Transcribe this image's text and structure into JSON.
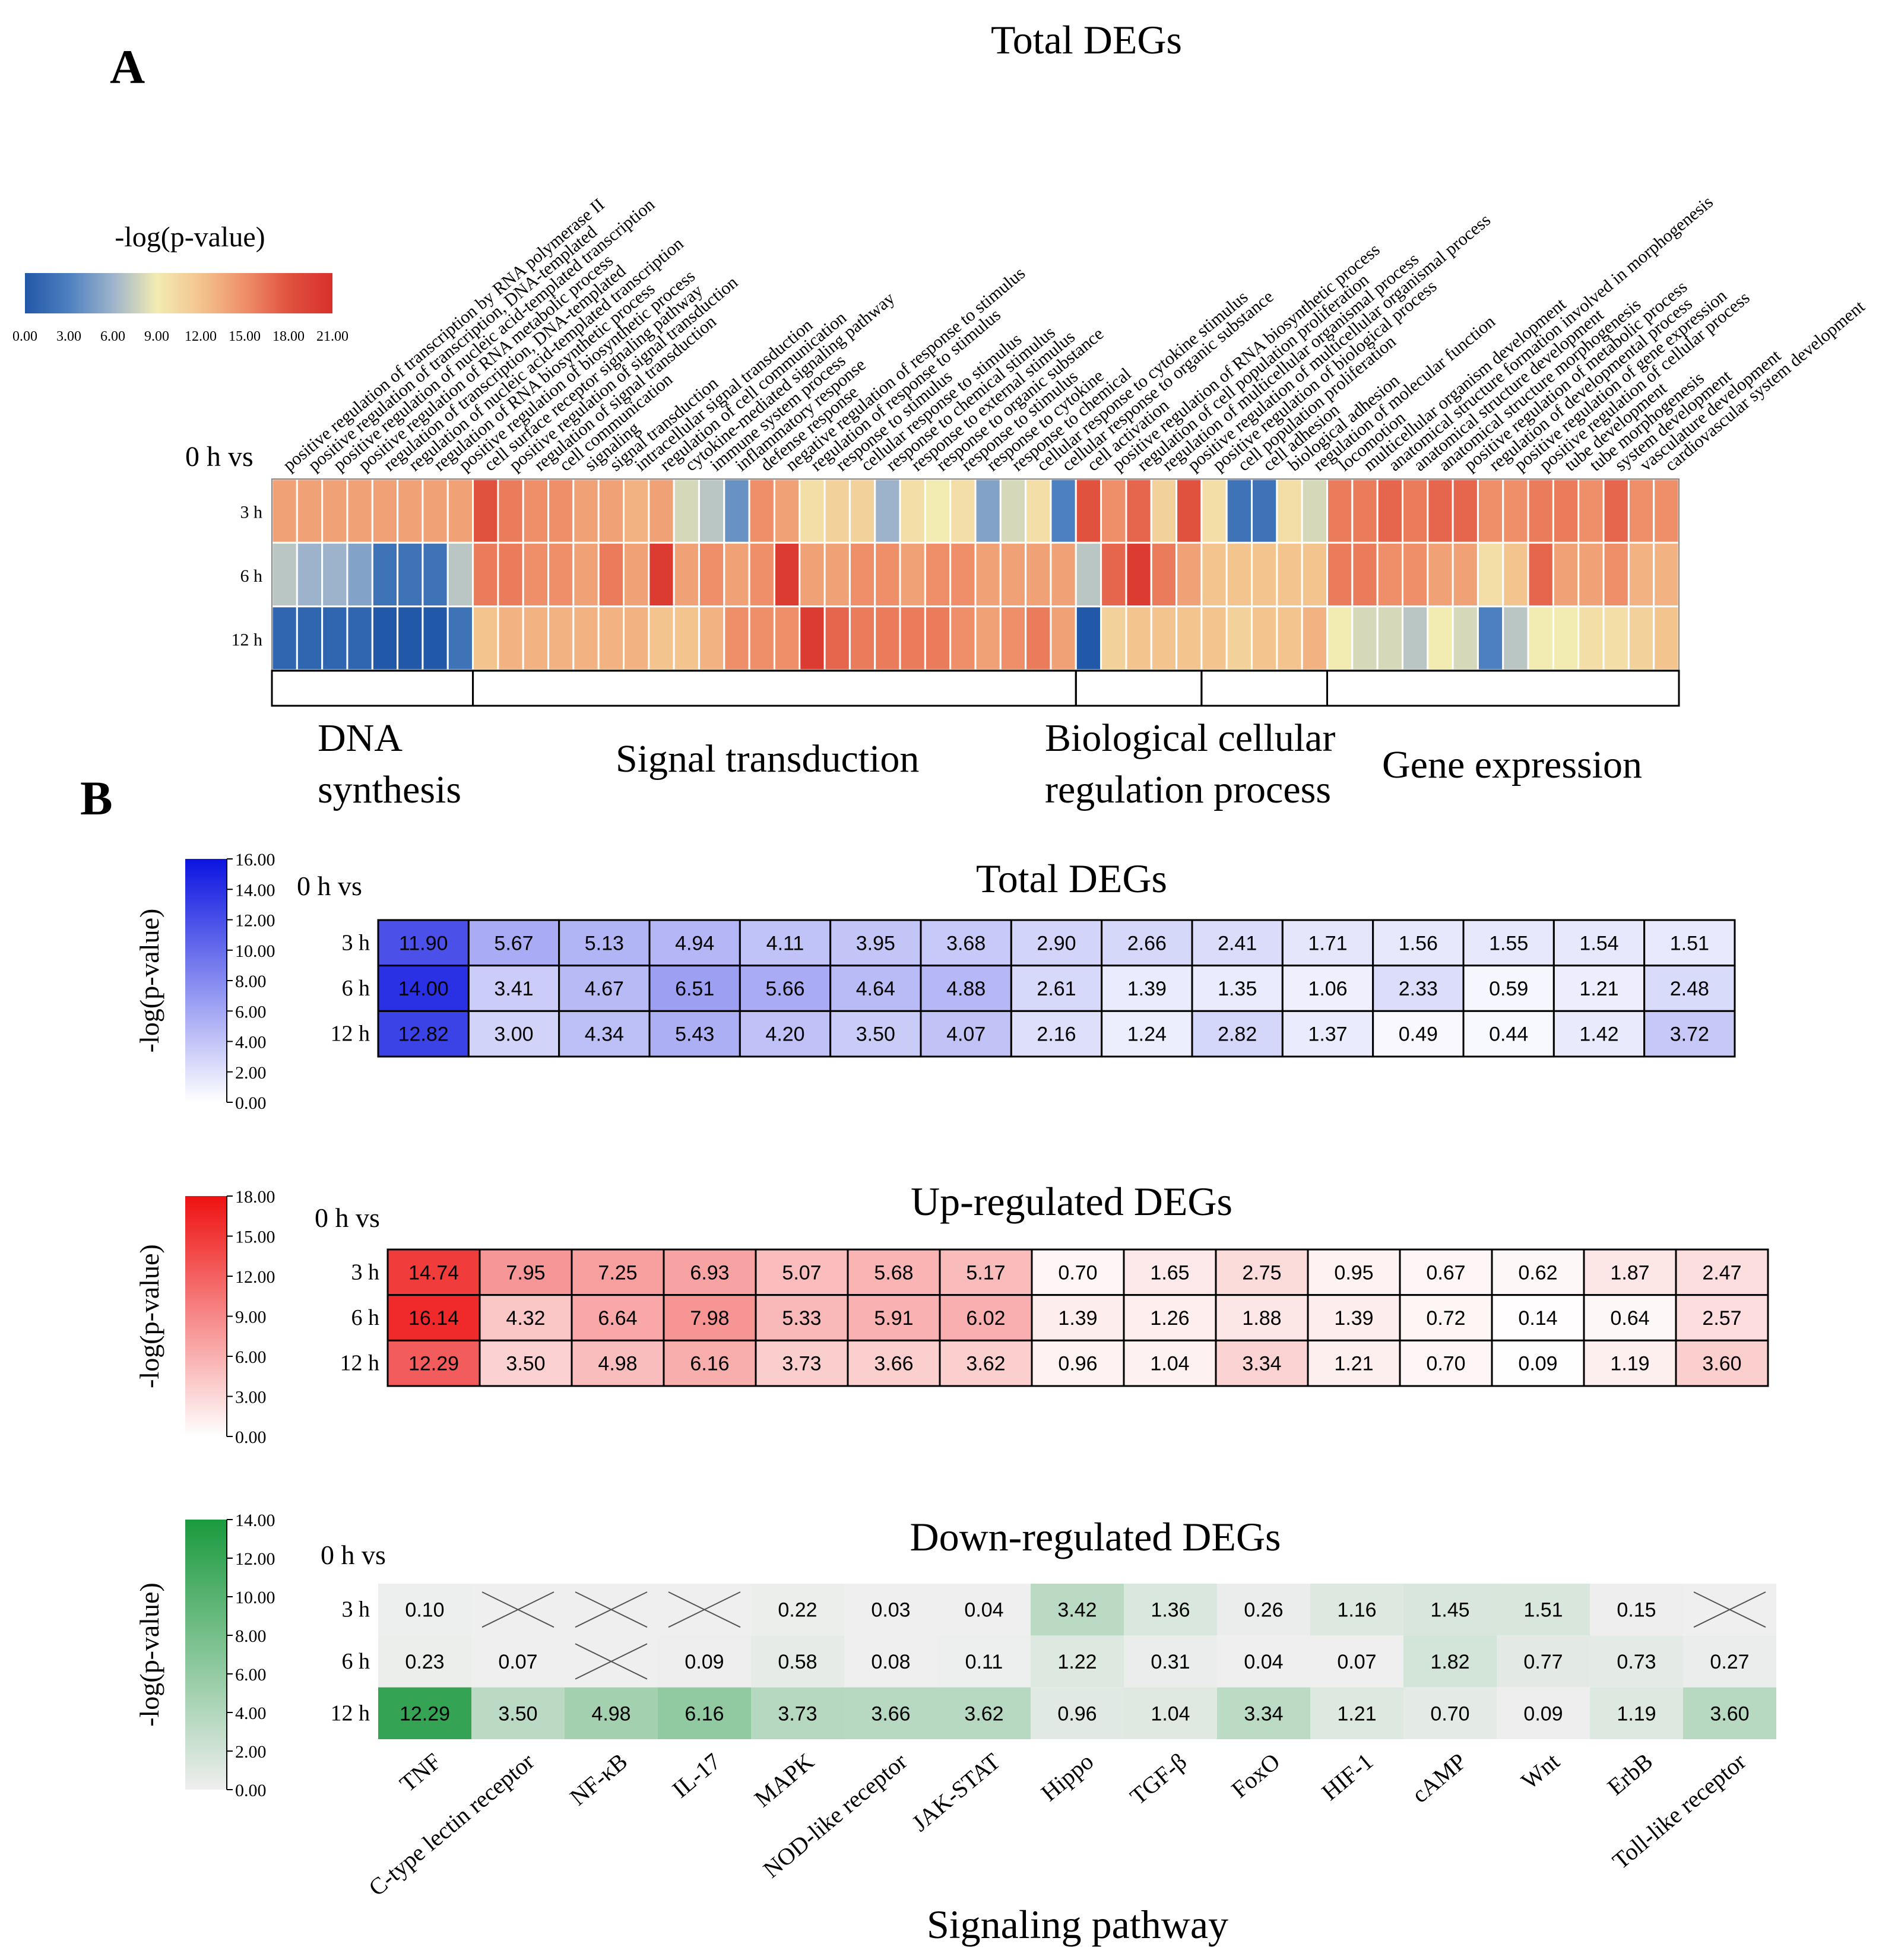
{
  "chart_data": [
    {
      "type": "heatmap",
      "panel": "A",
      "title": "Total  DEGs",
      "corner_label": "0 h vs",
      "colorbar": {
        "label": "-log(p-value)",
        "min": 0,
        "max": 21,
        "tick_labels": [
          "0.00",
          "3.00",
          "6.00",
          "9.00",
          "12.00",
          "15.00",
          "18.00",
          "21.00"
        ],
        "colors": [
          "#2158a8",
          "#4d80c0",
          "#9db3cb",
          "#f2ebb2",
          "#f3c48e",
          "#ef8f6a",
          "#e0523e",
          "#d9302b"
        ]
      },
      "rows": [
        "3 h",
        "6 h",
        "12 h"
      ],
      "columns": [
        "positive regulation of transcription by RNA polymerase II",
        "positive regulation of transcription, DNA-templated",
        "positive regulation of nucleic acid-templated transcription",
        "positive regulation of RNA metabolic process",
        "regulation of transcription, DNA-templated",
        "regulation of nucleic acid-templated transcription",
        "regulation of RNA biosynthetic process",
        "positive regulation of biosynthetic process",
        "cell surface receptor signaling pathway",
        "positive regulation of signal transduction",
        "regulation of signal transduction",
        "cell communication",
        "signaling",
        "signal transduction",
        "intracellular signal transduction",
        "regulation of cell communication",
        "cytokine-mediated signaling pathway",
        "immune system process",
        "inflammatory response",
        "defense response",
        "negative regulation of response to stimulus",
        "regulation of response to stimulus",
        "response to stimulus",
        "cellular response to stimulus",
        "response to chemical stimulus",
        "response to external stimulus",
        "response to organic substance",
        "response to stimulus",
        "response to cytokine",
        "response to chemical",
        "cellular response to cytokine stimulus",
        "cellular response to organic substance",
        "cell activation",
        "positive regulation of RNA biosynthetic process",
        "regulation of cell population proliferation",
        "regulation of multicellular organismal process",
        "positive regulation of multicellular organismal process",
        "positive regulation of biological process",
        "cell population proliferation",
        "cell adhesion",
        "biological adhesion",
        "regulation of molecular function",
        "locomotion",
        "multicellular organism development",
        "anatomical structure formation involved in morphogenesis",
        "anatomical structure development",
        "anatomical structure morphogenesis",
        "positive regulation of metabolic process",
        "regulation of developmental process",
        "positive regulation of gene expression",
        "positive regulation of cellular process",
        "tube development",
        "tube morphogenesis",
        "system development",
        "vasculature development",
        "cardiovascular system development"
      ],
      "values": [
        [
          14,
          14,
          14,
          14,
          14,
          14,
          14,
          14,
          18,
          16,
          15,
          15,
          14,
          14,
          13,
          14,
          8,
          7,
          4,
          15,
          14,
          10,
          11,
          11,
          6,
          10,
          9,
          10,
          5,
          8,
          10,
          3,
          18,
          15,
          17,
          11,
          18,
          10,
          2,
          2,
          10,
          8,
          16,
          16,
          17,
          16,
          17,
          17,
          15,
          15,
          16,
          16,
          15,
          17,
          15,
          15
        ],
        [
          7,
          6,
          6,
          5,
          2,
          2,
          2,
          7,
          16,
          16,
          15,
          15,
          14,
          16,
          14,
          20,
          14,
          15,
          14,
          15,
          20,
          14,
          14,
          15,
          15,
          14,
          15,
          15,
          14,
          14,
          14,
          14,
          7,
          17,
          20,
          16,
          14,
          12,
          12,
          12,
          12,
          12,
          16,
          16,
          15,
          15,
          14,
          14,
          10,
          12,
          17,
          14,
          14,
          15,
          13,
          13
        ],
        [
          1,
          1,
          1,
          1,
          0,
          0,
          0,
          2,
          12,
          13,
          13,
          13,
          13,
          13,
          13,
          12,
          12,
          13,
          15,
          15,
          15,
          20,
          17,
          16,
          16,
          16,
          16,
          15,
          14,
          15,
          16,
          14,
          0,
          11,
          12,
          12,
          12,
          12,
          11,
          12,
          12,
          13,
          9,
          8,
          8,
          7,
          9,
          8,
          3,
          7,
          9,
          9,
          10,
          10,
          11,
          12
        ]
      ],
      "groups": [
        {
          "label_line1": "DNA",
          "label_line2": "synthesis",
          "start": 0,
          "end": 8
        },
        {
          "label_line1": "Signal transduction",
          "start": 8,
          "end": 32
        },
        {
          "label_line1": "Biological cellular",
          "label_line2": "regulation  process",
          "start": 32,
          "end": 37
        },
        {
          "label_line1": "",
          "start": 37,
          "end": 42
        },
        {
          "label_line1": "Gene expression",
          "start": 42,
          "end": 56
        }
      ]
    },
    {
      "type": "heatmap",
      "panel": "B",
      "title": "Total  DEGs",
      "corner_label": "0 h vs",
      "colorbar": {
        "label": "-log(p-value)",
        "min": 0,
        "max": 16,
        "tick_labels": [
          "16.00",
          "14.00",
          "12.00",
          "10.00",
          "8.00",
          "6.00",
          "4.00",
          "2.00",
          "0.00"
        ],
        "color_low": "#ffffff",
        "color_high": "#0b14e0"
      },
      "rows": [
        "3 h",
        "6 h",
        "12 h"
      ],
      "columns": [
        "TNF",
        "C-type lectin receptor",
        "NF-κB",
        "IL-17",
        "MAPK",
        "NOD-like receptor",
        "JAK-STAT",
        "Hippo",
        "TGF-β",
        "FoxO",
        "HIF-1",
        "cAMP",
        "Wnt",
        "ErbB",
        "Toll-like receptor"
      ],
      "values": [
        [
          "11.90",
          "5.67",
          "5.13",
          "4.94",
          "4.11",
          "3.95",
          "3.68",
          "2.90",
          "2.66",
          "2.41",
          "1.71",
          "1.56",
          "1.55",
          "1.54",
          "1.51"
        ],
        [
          "14.00",
          "3.41",
          "4.67",
          "6.51",
          "5.66",
          "4.64",
          "4.88",
          "2.61",
          "1.39",
          "1.35",
          "1.06",
          "2.33",
          "0.59",
          "1.21",
          "2.48"
        ],
        [
          "12.82",
          "3.00",
          "4.34",
          "5.43",
          "4.20",
          "3.50",
          "4.07",
          "2.16",
          "1.24",
          "2.82",
          "1.37",
          "0.49",
          "0.44",
          "1.42",
          "3.72"
        ]
      ]
    },
    {
      "type": "heatmap",
      "panel": "B",
      "title": "Up-regulated DEGs",
      "corner_label": "0 h vs",
      "colorbar": {
        "label": "-log(p-value)",
        "min": 0,
        "max": 18,
        "tick_labels": [
          "18.00",
          "15.00",
          "12.00",
          "9.00",
          "6.00",
          "3.00",
          "0.00"
        ],
        "color_low": "#ffffff",
        "color_high": "#ee1111"
      },
      "rows": [
        "3 h",
        "6 h",
        "12 h"
      ],
      "columns": [
        "TNF",
        "C-type lectin receptor",
        "NF-κB",
        "IL-17",
        "MAPK",
        "NOD-like receptor",
        "JAK-STAT",
        "Hippo",
        "TGF-β",
        "FoxO",
        "HIF-1",
        "cAMP",
        "Wnt",
        "ErbB",
        "Toll-like receptor"
      ],
      "values": [
        [
          "14.74",
          "7.95",
          "7.25",
          "6.93",
          "5.07",
          "5.68",
          "5.17",
          "0.70",
          "1.65",
          "2.75",
          "0.95",
          "0.67",
          "0.62",
          "1.87",
          "2.47"
        ],
        [
          "16.14",
          "4.32",
          "6.64",
          "7.98",
          "5.33",
          "5.91",
          "6.02",
          "1.39",
          "1.26",
          "1.88",
          "1.39",
          "0.72",
          "0.14",
          "0.64",
          "2.57"
        ],
        [
          "12.29",
          "3.50",
          "4.98",
          "6.16",
          "3.73",
          "3.66",
          "3.62",
          "0.96",
          "1.04",
          "3.34",
          "1.21",
          "0.70",
          "0.09",
          "1.19",
          "3.60"
        ]
      ]
    },
    {
      "type": "heatmap",
      "panel": "B",
      "title": "Down-regulated DEGs",
      "corner_label": "0 h vs",
      "xlabel": "Signaling  pathway",
      "colorbar": {
        "label": "-log(p-value)",
        "min": 0,
        "max": 14,
        "tick_labels": [
          "14.00",
          "12.00",
          "10.00",
          "8.00",
          "6.00",
          "4.00",
          "2.00",
          "0.00"
        ],
        "color_low": "#efefef",
        "color_high": "#1a9a3e"
      },
      "rows": [
        "3 h",
        "6 h",
        "12 h"
      ],
      "columns": [
        "TNF",
        "C-type lectin receptor",
        "NF-κB",
        "IL-17",
        "MAPK",
        "NOD-like receptor",
        "JAK-STAT",
        "Hippo",
        "TGF-β",
        "FoxO",
        "HIF-1",
        "cAMP",
        "Wnt",
        "ErbB",
        "Toll-like receptor"
      ],
      "values": [
        [
          "0.10",
          null,
          null,
          null,
          "0.22",
          "0.03",
          "0.04",
          "3.42",
          "1.36",
          "0.26",
          "1.16",
          "1.45",
          "1.51",
          "0.15",
          null
        ],
        [
          "0.23",
          "0.07",
          null,
          "0.09",
          "0.58",
          "0.08",
          "0.11",
          "1.22",
          "0.31",
          "0.04",
          "0.07",
          "1.82",
          "0.77",
          "0.73",
          "0.27"
        ],
        [
          "12.29",
          "3.50",
          "4.98",
          "6.16",
          "3.73",
          "3.66",
          "3.62",
          "0.96",
          "1.04",
          "3.34",
          "1.21",
          "0.70",
          "0.09",
          "1.19",
          "3.60"
        ]
      ]
    }
  ],
  "panel_labels": {
    "a": "A",
    "b": "B"
  }
}
